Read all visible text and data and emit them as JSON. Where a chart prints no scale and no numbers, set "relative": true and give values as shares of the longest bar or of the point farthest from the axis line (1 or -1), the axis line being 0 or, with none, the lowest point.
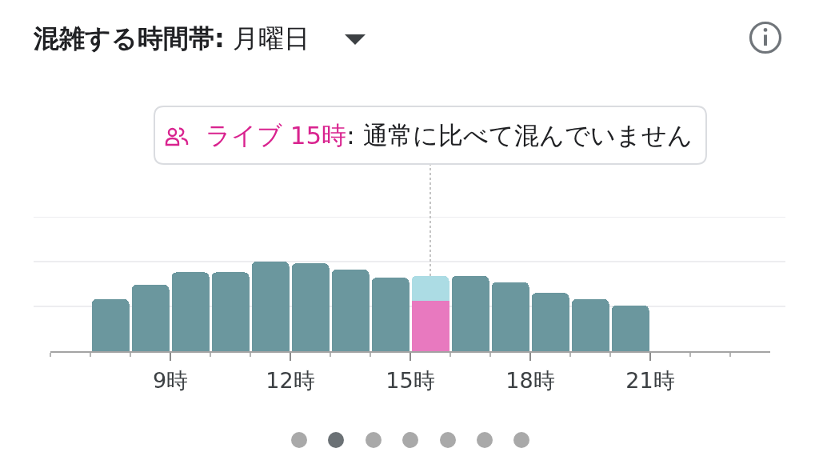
{
  "chart_data": {
    "type": "bar",
    "title": "混雑する時間帯: 月曜日",
    "relative": true,
    "stacked": true,
    "tick_labels": "x",
    "x": [
      7.5,
      8.5,
      9.5,
      10.5,
      11.5,
      12.5,
      13.5,
      14.5,
      15.5,
      16.5,
      17.5,
      18.5,
      19.5,
      20.5
    ],
    "xlim": [
      6,
      24
    ],
    "xticks": [
      {
        "value": 6,
        "label": null
      },
      {
        "value": 7,
        "label": null
      },
      {
        "value": 8,
        "label": null
      },
      {
        "value": 9,
        "label": "9時"
      },
      {
        "value": 10,
        "label": null
      },
      {
        "value": 11,
        "label": null
      },
      {
        "value": 12,
        "label": "12時"
      },
      {
        "value": 13,
        "label": null
      },
      {
        "value": 14,
        "label": null
      },
      {
        "value": 15,
        "label": "15時"
      },
      {
        "value": 16,
        "label": null
      },
      {
        "value": 17,
        "label": null
      },
      {
        "value": 18,
        "label": "18時"
      },
      {
        "value": 19,
        "label": null
      },
      {
        "value": 20,
        "label": null
      },
      {
        "value": 21,
        "label": "21時"
      },
      {
        "value": 22,
        "label": null
      },
      {
        "value": 23,
        "label": null
      }
    ],
    "series": [
      {
        "colors": [
          "#6b979e",
          "#6b979e",
          "#6b979e",
          "#6b979e",
          "#6b979e",
          "#6b979e",
          "#6b979e",
          "#6b979e",
          "#e879bf",
          "#6b979e",
          "#6b979e",
          "#6b979e",
          "#6b979e",
          "#6b979e"
        ],
        "values": [
          0.58,
          0.74,
          0.88,
          0.88,
          1,
          0.98,
          0.91,
          0.82,
          0.56,
          0.84,
          0.77,
          0.65,
          0.58,
          0.51
        ]
      },
      {
        "color": "#acdce4",
        "values": [
          null,
          null,
          null,
          null,
          null,
          null,
          null,
          null,
          0.28,
          null,
          null,
          null,
          null,
          null
        ]
      }
    ],
    "ref_lines": [
      {
        "axis": "y",
        "value": 0.5,
        "color": "#ededf0"
      },
      {
        "axis": "y",
        "value": 1,
        "color": "#ededf0"
      },
      {
        "axis": "y",
        "value": 1.5,
        "color": "#ededf0"
      }
    ],
    "annotations": [
      {
        "text": "ライブ 15時: 通常に比べて混んでいません",
        "x": 15.5,
        "y": 0.84
      }
    ]
  }
}
